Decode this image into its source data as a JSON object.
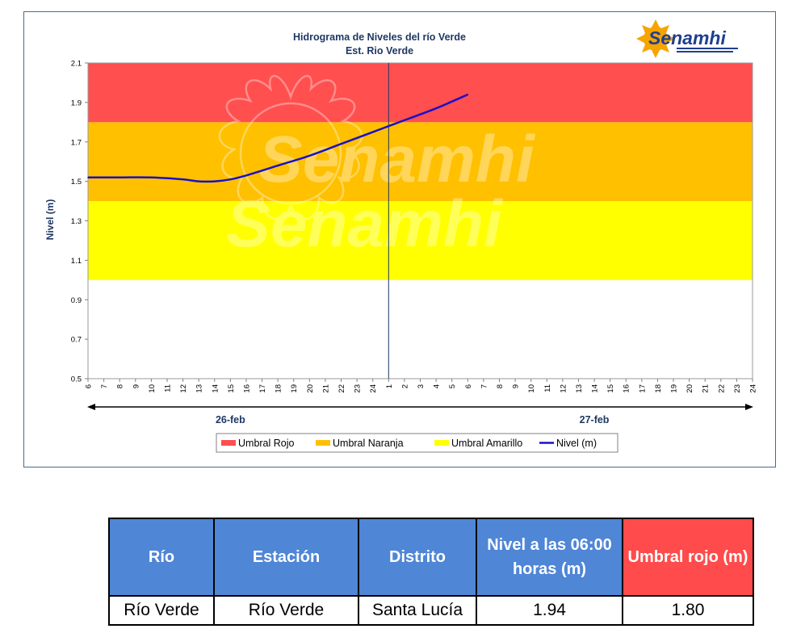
{
  "chart_data": {
    "type": "line",
    "title": "Hidrograma de Niveles del río Verde",
    "subtitle": "Est. Rio Verde",
    "ylabel": "Nivel  (m)",
    "ylim": [
      0.5,
      2.1
    ],
    "yticks": [
      "0.5",
      "0.7",
      "0.9",
      "1.1",
      "1.3",
      "1.5",
      "1.7",
      "1.9",
      "2.1"
    ],
    "xticks": [
      "6",
      "7",
      "8",
      "9",
      "10",
      "11",
      "12",
      "13",
      "14",
      "15",
      "16",
      "17",
      "18",
      "19",
      "20",
      "21",
      "22",
      "23",
      "24",
      "1",
      "2",
      "3",
      "4",
      "5",
      "6",
      "7",
      "8",
      "9",
      "10",
      "11",
      "12",
      "13",
      "14",
      "15",
      "16",
      "17",
      "18",
      "19",
      "20",
      "21",
      "22",
      "23",
      "24"
    ],
    "date_labels": [
      {
        "label": "26-feb",
        "tick_index": 9
      },
      {
        "label": "27-feb",
        "tick_index": 32
      }
    ],
    "divider_tick_index": 19,
    "bands": [
      {
        "name": "Umbral Amarillo",
        "from": 1.0,
        "to": 1.4,
        "color": "#ffff00"
      },
      {
        "name": "Umbral Naranja",
        "from": 1.4,
        "to": 1.8,
        "color": "#ffc000"
      },
      {
        "name": "Umbral Rojo",
        "from": 1.8,
        "to": 2.1,
        "color": "#ff4f4f"
      }
    ],
    "series": [
      {
        "name": "Nivel  (m)",
        "color": "#1a10c8",
        "points": [
          {
            "tick_index": 0,
            "y": 1.52
          },
          {
            "tick_index": 2,
            "y": 1.52
          },
          {
            "tick_index": 4,
            "y": 1.52
          },
          {
            "tick_index": 6,
            "y": 1.51
          },
          {
            "tick_index": 7,
            "y": 1.5
          },
          {
            "tick_index": 8,
            "y": 1.5
          },
          {
            "tick_index": 9,
            "y": 1.51
          },
          {
            "tick_index": 10,
            "y": 1.53
          },
          {
            "tick_index": 12,
            "y": 1.58
          },
          {
            "tick_index": 14,
            "y": 1.63
          },
          {
            "tick_index": 16,
            "y": 1.69
          },
          {
            "tick_index": 18,
            "y": 1.75
          },
          {
            "tick_index": 19,
            "y": 1.78
          },
          {
            "tick_index": 20,
            "y": 1.81
          },
          {
            "tick_index": 22,
            "y": 1.87
          },
          {
            "tick_index": 24,
            "y": 1.94
          }
        ]
      }
    ],
    "legend": [
      "Umbral Rojo",
      "Umbral Naranja",
      "Umbral Amarillo",
      "Nivel  (m)"
    ],
    "legend_position": "bottom",
    "watermark": "Senamhi"
  },
  "logo": {
    "text": "Senamhi"
  },
  "table": {
    "headers": [
      "Río",
      "Estación",
      "Distrito",
      "Nivel a las 06:00 horas (m)",
      "Umbral rojo (m)"
    ],
    "row": [
      "Río Verde",
      "Río Verde",
      "Santa Lucía",
      "1.94",
      "1.80"
    ]
  }
}
